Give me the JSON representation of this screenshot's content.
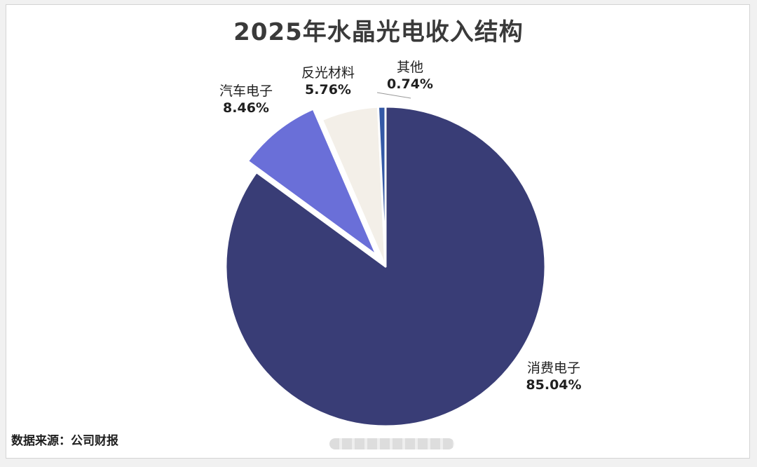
{
  "chart_data": {
    "type": "pie",
    "title": "2025年水晶光电收入结构",
    "slices": [
      {
        "name": "消费电子",
        "value": 85.04,
        "label": "85.04%",
        "color": "#393d76"
      },
      {
        "name": "汽车电子",
        "value": 8.46,
        "label": "8.46%",
        "color": "#6a6fd8"
      },
      {
        "name": "反光材料",
        "value": 5.76,
        "label": "5.76%",
        "color": "#f3efe8"
      },
      {
        "name": "其他",
        "value": 0.74,
        "label": "0.74%",
        "color": "#3459a6"
      }
    ],
    "exploded": [
      "汽车电子"
    ]
  },
  "source": "数据来源：公司财报"
}
